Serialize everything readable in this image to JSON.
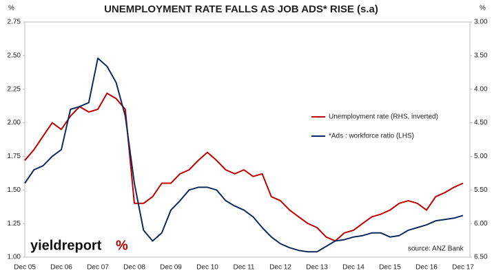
{
  "chart_data": {
    "type": "line",
    "title": "UNEMPLOYMENT RATE FALLS AS JOB ADS* RISE  (s.a)",
    "y_unit": "%",
    "y2_unit": "%",
    "source": "source: ANZ Bank",
    "logo": "yieldreport",
    "logo_symbol": "%",
    "categories": [
      "Dec 05",
      null,
      null,
      null,
      "Dec 06",
      null,
      null,
      null,
      "Dec 07",
      null,
      null,
      null,
      "Dec 08",
      null,
      null,
      null,
      "Dec 09",
      null,
      null,
      null,
      "Dec 10",
      null,
      null,
      null,
      "Dec 11",
      null,
      null,
      null,
      "Dec 12",
      null,
      null,
      null,
      "Dec 13",
      null,
      null,
      null,
      "Dec 14",
      null,
      null,
      null,
      "Dec 15",
      null,
      null,
      null,
      "Dec 16",
      null,
      null,
      null,
      "Dec 17"
    ],
    "series": [
      {
        "name": "Unemployment rate (RHS, inverted)",
        "color": "#c00000",
        "axis": "y2",
        "values": [
          5.06,
          4.9,
          4.7,
          4.5,
          4.6,
          4.4,
          4.26,
          4.34,
          4.3,
          4.06,
          4.14,
          4.3,
          5.7,
          5.7,
          5.6,
          5.4,
          5.4,
          5.26,
          5.2,
          5.06,
          4.94,
          5.06,
          5.2,
          5.26,
          5.2,
          5.3,
          5.26,
          5.6,
          5.66,
          5.8,
          5.9,
          6.0,
          6.06,
          6.2,
          6.26,
          6.14,
          6.1,
          6.0,
          5.9,
          5.86,
          5.8,
          5.7,
          5.66,
          5.7,
          5.8,
          5.6,
          5.54,
          5.46,
          5.4
        ]
      },
      {
        "name": "*Ads : workforce ratio (LHS)",
        "color": "#0e2a5c",
        "axis": "y",
        "values": [
          1.55,
          1.65,
          1.68,
          1.75,
          1.8,
          2.1,
          2.12,
          2.15,
          2.48,
          2.42,
          2.3,
          2.05,
          1.55,
          1.2,
          1.12,
          1.18,
          1.35,
          1.42,
          1.5,
          1.52,
          1.52,
          1.5,
          1.42,
          1.38,
          1.35,
          1.3,
          1.22,
          1.15,
          1.1,
          1.07,
          1.05,
          1.04,
          1.04,
          1.08,
          1.12,
          1.13,
          1.15,
          1.16,
          1.18,
          1.18,
          1.15,
          1.16,
          1.2,
          1.22,
          1.24,
          1.27,
          1.28,
          1.29,
          1.31
        ]
      }
    ],
    "ylim": [
      1.0,
      2.75
    ],
    "yticks": [
      {
        "value": 1.0,
        "label": "1.00"
      },
      {
        "value": 1.25,
        "label": "1.25"
      },
      {
        "value": 1.5,
        "label": "1.50"
      },
      {
        "value": 1.75,
        "label": "1.75"
      },
      {
        "value": 2.0,
        "label": "2.00"
      },
      {
        "value": 2.25,
        "label": "2.25"
      },
      {
        "value": 2.5,
        "label": "2.50"
      },
      {
        "value": 2.75,
        "label": "2.75"
      }
    ],
    "y2lim": [
      3.0,
      6.5
    ],
    "y2_inverted": true,
    "y2ticks": [
      {
        "value": 3.0,
        "label": "3.00"
      },
      {
        "value": 3.5,
        "label": "3.50"
      },
      {
        "value": 4.0,
        "label": "4.00"
      },
      {
        "value": 4.5,
        "label": "4.50"
      },
      {
        "value": 5.0,
        "label": "5.00"
      },
      {
        "value": 5.5,
        "label": "5.50"
      },
      {
        "value": 6.0,
        "label": "6.00"
      },
      {
        "value": 6.5,
        "label": "6.50"
      }
    ],
    "grid": false
  }
}
